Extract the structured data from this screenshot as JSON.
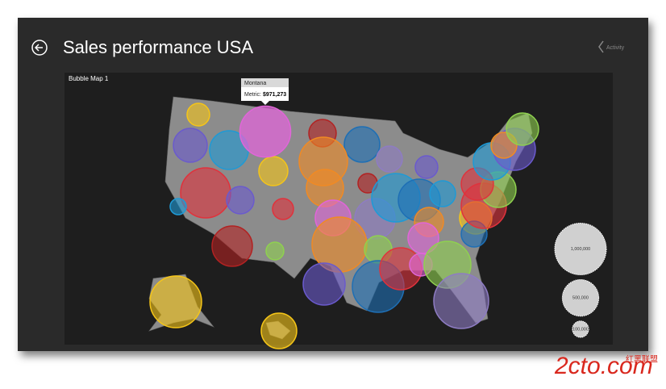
{
  "header": {
    "title": "Sales performance USA",
    "activity": "Activity"
  },
  "map": {
    "title": "Bubble Map 1",
    "tooltip": {
      "state": "Montana",
      "metric_label": "Metric:",
      "value": 971273,
      "value_label": "$971,273"
    },
    "legend": [
      {
        "value": 1000000,
        "label": "1,000,000"
      },
      {
        "value": 500000,
        "label": "500,000"
      },
      {
        "value": 100000,
        "label": "100,000"
      }
    ]
  },
  "watermark": {
    "brand": "2cto.com",
    "tagline": "红黑联盟"
  }
}
